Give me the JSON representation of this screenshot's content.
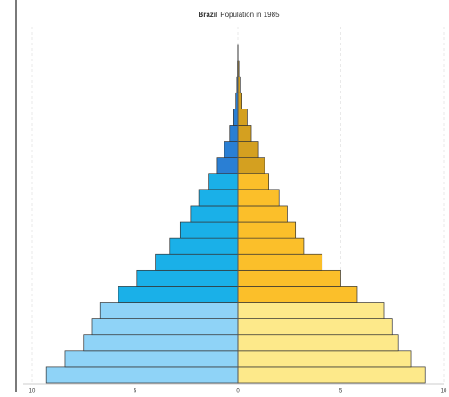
{
  "chart_data": {
    "type": "pyramid",
    "title_country": "Brazil",
    "title": "Population in 1985",
    "xlim": [
      -10,
      10
    ],
    "xticks": [
      {
        "value": -10,
        "label": "10"
      },
      {
        "value": -5,
        "label": "5"
      },
      0,
      5,
      {
        "value": 10,
        "label": "10"
      }
    ],
    "grid": true,
    "series": [
      {
        "values": [
          -9.3,
          -8.4,
          -7.5,
          -7.1,
          -6.7,
          -5.8,
          -4.9,
          -4.0,
          -3.3,
          -2.8,
          -2.3,
          -1.9,
          -1.4,
          -1.0,
          -0.65,
          -0.4,
          -0.2,
          -0.1,
          -0.05,
          -0.02,
          -0.01
        ],
        "colors": [
          "#8fd3f7",
          "#8fd3f7",
          "#8fd3f7",
          "#8fd3f7",
          "#8fd3f7",
          "#1ab0e8",
          "#1ab0e8",
          "#1ab0e8",
          "#1ab0e8",
          "#1ab0e8",
          "#1ab0e8",
          "#1ab0e8",
          "#1ab0e8",
          "#2a7fd4",
          "#2a7fd4",
          "#2a7fd4",
          "#2a7fd4",
          "#2a7fd4",
          "#2a7fd4",
          "#2a7fd4",
          "#2a7fd4"
        ]
      },
      {
        "values": [
          9.1,
          8.4,
          7.8,
          7.5,
          7.1,
          5.8,
          5.0,
          4.1,
          3.2,
          2.8,
          2.4,
          2.0,
          1.5,
          1.3,
          1.0,
          0.65,
          0.45,
          0.2,
          0.1,
          0.05,
          0.01
        ],
        "colors": [
          "#fde98a",
          "#fde98a",
          "#fde98a",
          "#fde98a",
          "#fde98a",
          "#fbbf2a",
          "#fbbf2a",
          "#fbbf2a",
          "#fbbf2a",
          "#fbbf2a",
          "#fbbf2a",
          "#fbbf2a",
          "#fbbf2a",
          "#d4a020",
          "#d4a020",
          "#d4a020",
          "#d4a020",
          "#d4a020",
          "#d4a020",
          "#d4a020",
          "#d4a020"
        ]
      }
    ]
  }
}
